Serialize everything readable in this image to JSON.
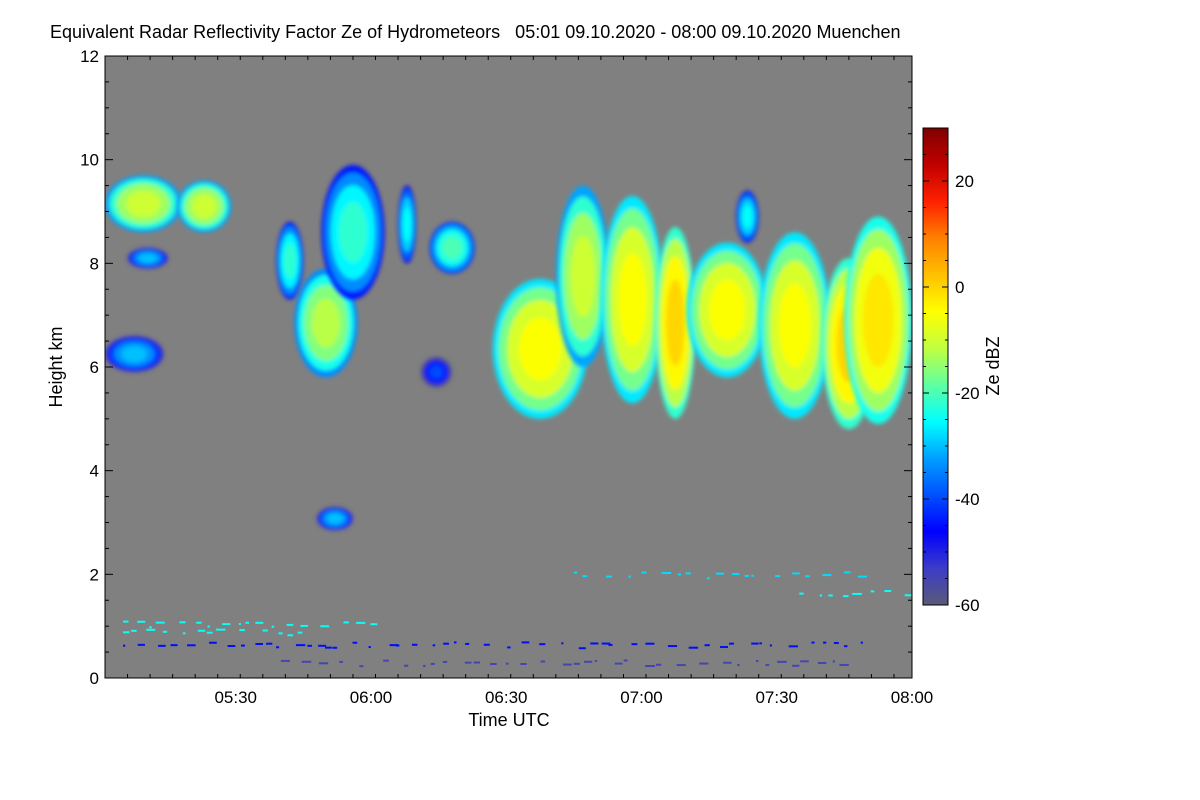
{
  "chart_data": {
    "type": "heatmap",
    "title": "Equivalent Radar Reflectivity Factor Ze of Hydrometeors   05:01 09.10.2020 - 08:00 09.10.2020 Muenchen",
    "xlabel": "Time UTC",
    "ylabel": "Height km",
    "x_range": [
      "05:01",
      "08:00"
    ],
    "x_ticks": [
      "05:30",
      "06:00",
      "06:30",
      "07:00",
      "07:30",
      "08:00"
    ],
    "ylim": [
      0,
      12
    ],
    "y_ticks": [
      "0",
      "2",
      "4",
      "6",
      "8",
      "10",
      "12"
    ],
    "background_color": "#808080",
    "colorbar": {
      "label": "Ze dBZ",
      "range": [
        -60,
        30
      ],
      "ticks": [
        "-60",
        "-40",
        "-20",
        "0",
        "20"
      ],
      "colors": [
        "#5a5a78",
        "#3c3cc8",
        "#0000ff",
        "#0050ff",
        "#00a0ff",
        "#00ffff",
        "#60ffa0",
        "#c0ff40",
        "#ffff00",
        "#ffc000",
        "#ff8000",
        "#ff2000",
        "#c00000",
        "#800000"
      ]
    },
    "echo_regions": [
      {
        "t_start": "05:01",
        "t_end": "05:18",
        "h_bottom": 8.6,
        "h_top": 9.7,
        "ze_core": -10
      },
      {
        "t_start": "05:06",
        "t_end": "05:15",
        "h_bottom": 7.9,
        "h_top": 8.3,
        "ze_core": -30
      },
      {
        "t_start": "05:01",
        "t_end": "05:14",
        "h_bottom": 5.9,
        "h_top": 6.6,
        "ze_core": -30
      },
      {
        "t_start": "05:17",
        "t_end": "05:29",
        "h_bottom": 8.6,
        "h_top": 9.6,
        "ze_core": -10
      },
      {
        "t_start": "05:39",
        "t_end": "05:45",
        "h_bottom": 7.3,
        "h_top": 8.8,
        "ze_core": -22
      },
      {
        "t_start": "05:43",
        "t_end": "05:57",
        "h_bottom": 5.8,
        "h_top": 7.9,
        "ze_core": -12
      },
      {
        "t_start": "05:49",
        "t_end": "06:03",
        "h_bottom": 7.3,
        "h_top": 9.9,
        "ze_core": -22
      },
      {
        "t_start": "06:06",
        "t_end": "06:10",
        "h_bottom": 8.0,
        "h_top": 9.5,
        "ze_core": -25
      },
      {
        "t_start": "06:13",
        "t_end": "06:23",
        "h_bottom": 7.8,
        "h_top": 8.8,
        "ze_core": -20
      },
      {
        "t_start": "06:11",
        "t_end": "06:18",
        "h_bottom": 5.6,
        "h_top": 6.2,
        "ze_core": -40
      },
      {
        "t_start": "06:27",
        "t_end": "06:48",
        "h_bottom": 5.0,
        "h_top": 7.7,
        "ze_core": -5
      },
      {
        "t_start": "06:41",
        "t_end": "06:53",
        "h_bottom": 6.0,
        "h_top": 9.5,
        "ze_core": -10
      },
      {
        "t_start": "06:51",
        "t_end": "07:05",
        "h_bottom": 5.3,
        "h_top": 9.3,
        "ze_core": -5
      },
      {
        "t_start": "07:03",
        "t_end": "07:12",
        "h_bottom": 5.0,
        "h_top": 8.7,
        "ze_core": 0
      },
      {
        "t_start": "07:10",
        "t_end": "07:28",
        "h_bottom": 5.8,
        "h_top": 8.4,
        "ze_core": -5
      },
      {
        "t_start": "07:21",
        "t_end": "07:26",
        "h_bottom": 8.4,
        "h_top": 9.4,
        "ze_core": -25
      },
      {
        "t_start": "07:26",
        "t_end": "07:42",
        "h_bottom": 5.0,
        "h_top": 8.6,
        "ze_core": -5
      },
      {
        "t_start": "07:40",
        "t_end": "07:52",
        "h_bottom": 4.8,
        "h_top": 8.1,
        "ze_core": 0
      },
      {
        "t_start": "07:45",
        "t_end": "08:00",
        "h_bottom": 4.9,
        "h_top": 8.9,
        "ze_core": -2
      },
      {
        "t_start": "05:48",
        "t_end": "05:56",
        "h_bottom": 2.85,
        "h_top": 3.3,
        "ze_core": -30
      }
    ],
    "low_level_returns": [
      {
        "t_start": "05:05",
        "t_end": "05:45",
        "h": 0.9,
        "ze": -25
      },
      {
        "t_start": "05:05",
        "t_end": "06:00",
        "h": 1.05,
        "ze": -25
      },
      {
        "t_start": "07:35",
        "t_end": "08:00",
        "h": 1.65,
        "ze": -25
      },
      {
        "t_start": "06:45",
        "t_end": "07:50",
        "h": 2.0,
        "ze": -28
      },
      {
        "t_start": "05:05",
        "t_end": "07:50",
        "h": 0.65,
        "ze": -45
      },
      {
        "t_start": "05:40",
        "t_end": "07:45",
        "h": 0.3,
        "ze": -55
      }
    ]
  }
}
